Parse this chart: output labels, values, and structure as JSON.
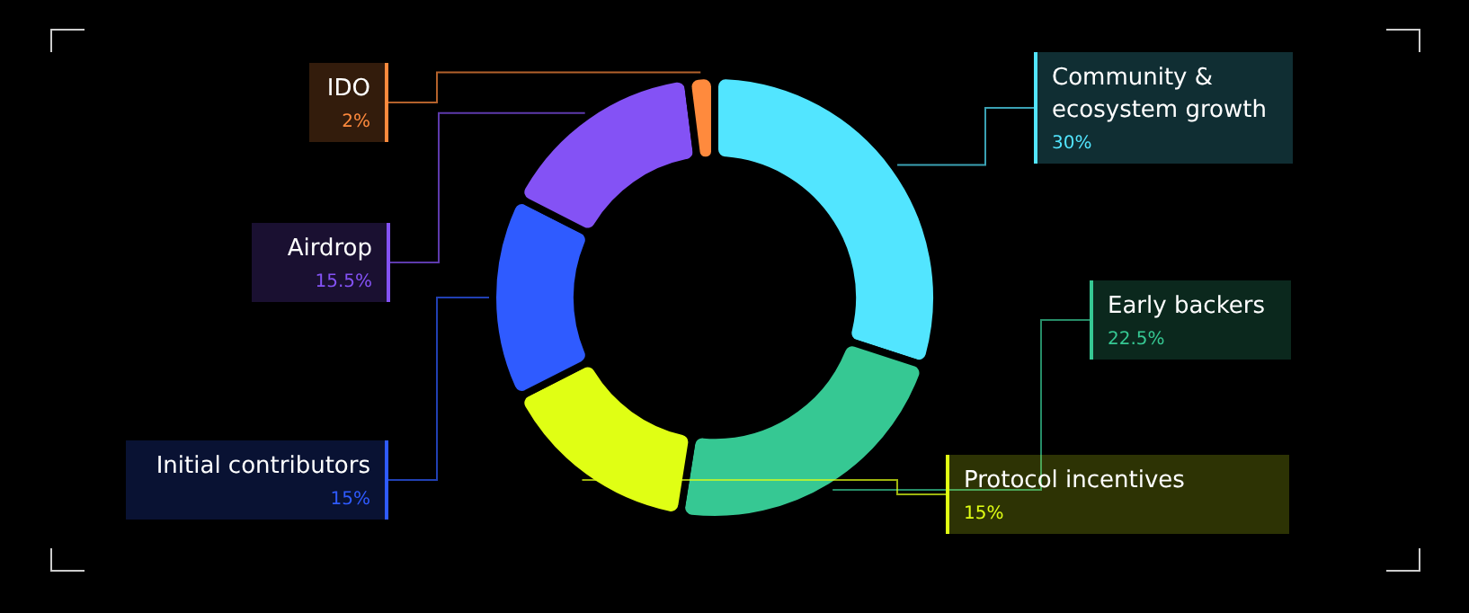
{
  "chart_data": {
    "type": "donut",
    "categories": [
      "Community & ecosystem growth",
      "Early backers",
      "Protocol incentives",
      "Initial contributors",
      "Airdrop",
      "IDO"
    ],
    "values": [
      30,
      22.5,
      15,
      15,
      15.5,
      2
    ],
    "value_labels": [
      "30%",
      "22.5%",
      "15%",
      "15%",
      "15.5%",
      "2%"
    ],
    "colors": [
      "#52e5ff",
      "#36c893",
      "#e0ff14",
      "#2f5bff",
      "#8452f5",
      "#ff8a3d"
    ],
    "legend": false
  }
}
